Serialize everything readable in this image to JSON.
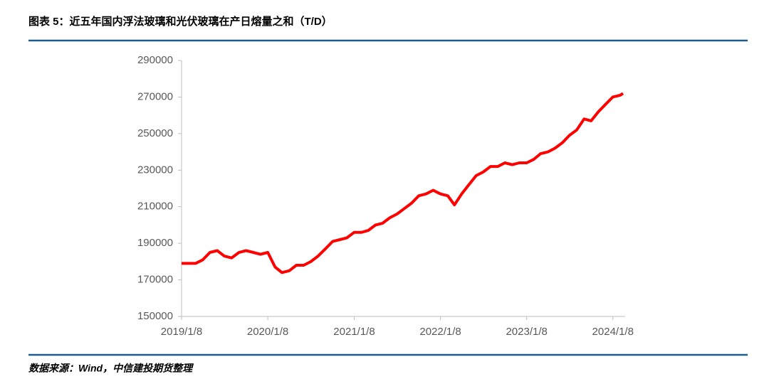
{
  "chart_data": {
    "type": "line",
    "title": "图表 5：近五年国内浮法玻璃和光伏玻璃在产日熔量之和（T/D）",
    "source": "数据来源：Wind，中信建投期货整理",
    "x": [
      "2019/1/8",
      "2019/2/8",
      "2019/3/8",
      "2019/4/8",
      "2019/5/8",
      "2019/6/8",
      "2019/7/8",
      "2019/8/8",
      "2019/9/8",
      "2019/10/8",
      "2019/11/8",
      "2019/12/8",
      "2020/1/8",
      "2020/2/8",
      "2020/3/8",
      "2020/4/8",
      "2020/5/8",
      "2020/6/8",
      "2020/7/8",
      "2020/8/8",
      "2020/9/8",
      "2020/10/8",
      "2020/11/8",
      "2020/12/8",
      "2021/1/8",
      "2021/2/8",
      "2021/3/8",
      "2021/4/8",
      "2021/5/8",
      "2021/6/8",
      "2021/7/8",
      "2021/8/8",
      "2021/9/8",
      "2021/10/8",
      "2021/11/8",
      "2021/12/8",
      "2022/1/8",
      "2022/2/8",
      "2022/3/8",
      "2022/4/8",
      "2022/5/8",
      "2022/6/8",
      "2022/7/8",
      "2022/8/8",
      "2022/9/8",
      "2022/10/8",
      "2022/11/8",
      "2022/12/8",
      "2023/1/8",
      "2023/2/8",
      "2023/3/8",
      "2023/4/8",
      "2023/5/8",
      "2023/6/8",
      "2023/7/8",
      "2023/8/8",
      "2023/9/8",
      "2023/10/8",
      "2023/11/8",
      "2023/12/8",
      "2024/1/8",
      "2024/2/8",
      "2024/2/20"
    ],
    "series": [
      {
        "name": "在产日熔量之和",
        "color": "#ff0000",
        "values": [
          179000,
          179000,
          179000,
          181000,
          185000,
          186000,
          183000,
          182000,
          185000,
          186000,
          185000,
          184000,
          185000,
          177000,
          174000,
          175000,
          178000,
          178000,
          180000,
          183000,
          187000,
          191000,
          192000,
          193000,
          196000,
          196000,
          197000,
          200000,
          201000,
          204000,
          206000,
          209000,
          212000,
          216000,
          217000,
          219000,
          217000,
          216000,
          211000,
          217000,
          222000,
          227000,
          229000,
          232000,
          232000,
          234000,
          233000,
          234000,
          234000,
          236000,
          239000,
          240000,
          242000,
          245000,
          249000,
          252000,
          258000,
          257000,
          262000,
          266000,
          270000,
          271000,
          272000
        ]
      }
    ],
    "xlim": [
      "2019/1/8",
      "2024/2/29"
    ],
    "xticks": [
      "2019/1/8",
      "2020/1/8",
      "2021/1/8",
      "2022/1/8",
      "2023/1/8",
      "2024/1/8"
    ],
    "ylim": [
      150000,
      290000
    ],
    "yticks": [
      150000,
      170000,
      190000,
      210000,
      230000,
      250000,
      270000,
      290000
    ],
    "grid": false
  }
}
